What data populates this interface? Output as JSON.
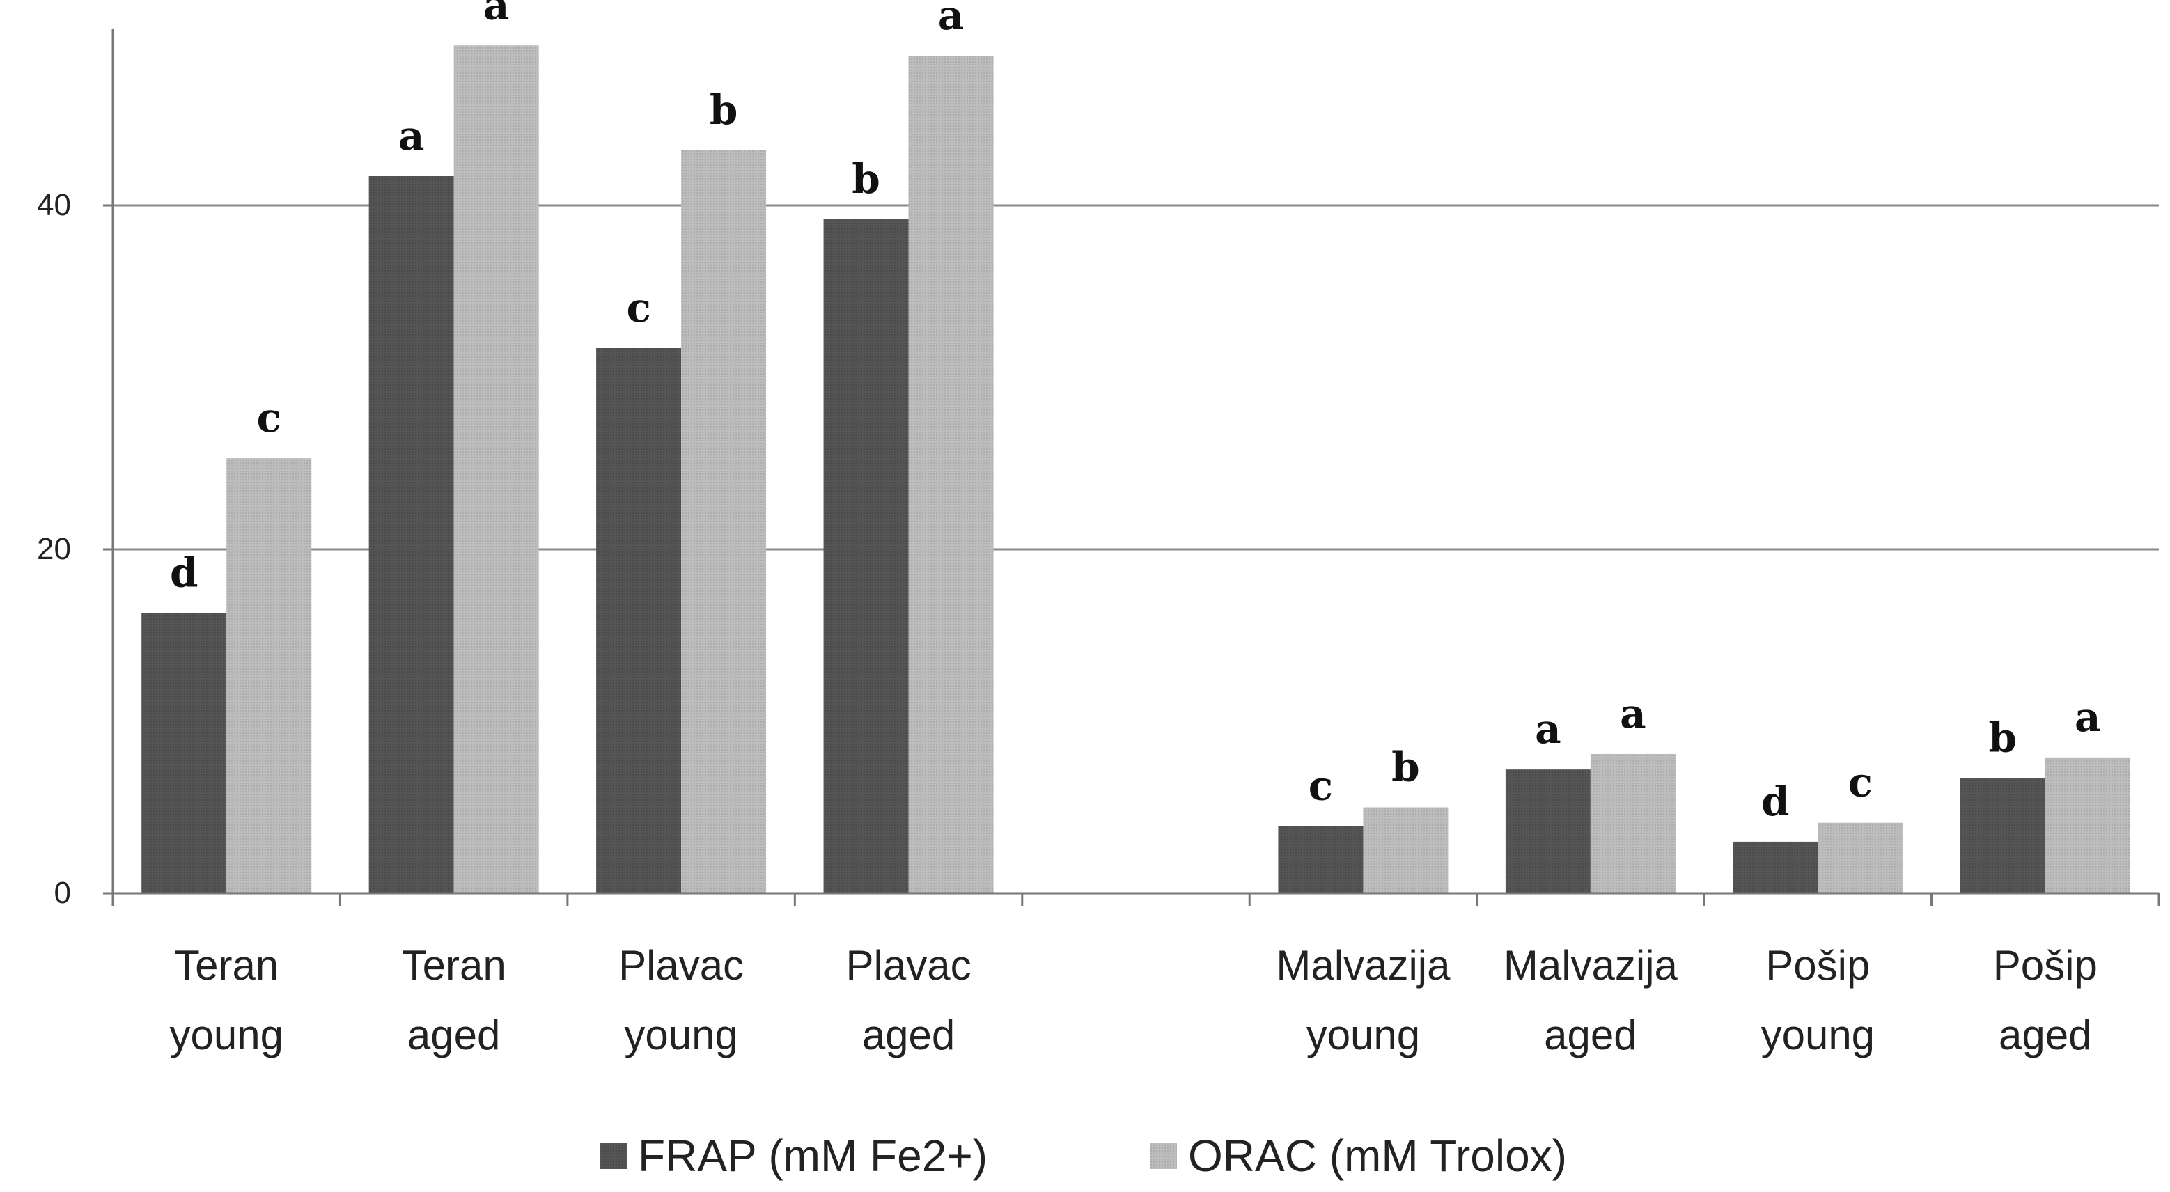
{
  "chart_data": {
    "type": "bar",
    "title": "",
    "xlabel": "",
    "ylabel": "",
    "ylim": [
      0,
      50
    ],
    "yticks": [
      0,
      20,
      40
    ],
    "grid": true,
    "legend_position": "bottom-center",
    "categories": [
      [
        "Teran",
        "young"
      ],
      [
        "Teran",
        "aged"
      ],
      [
        "Plavac",
        "young"
      ],
      [
        "Plavac",
        "aged"
      ],
      [
        "",
        ""
      ],
      [
        "Malvazija",
        "young"
      ],
      [
        "Malvazija",
        "aged"
      ],
      [
        "Pošip",
        "young"
      ],
      [
        "Pošip",
        "aged"
      ]
    ],
    "series": [
      {
        "name": "FRAP (mM Fe2+)",
        "color": "#555555",
        "values": [
          16.3,
          41.7,
          31.7,
          39.2,
          null,
          3.9,
          7.2,
          3.0,
          6.7
        ],
        "letters": [
          "d",
          "a",
          "c",
          "b",
          "",
          "c",
          "a",
          "d",
          "b"
        ]
      },
      {
        "name": "ORAC (mM Trolox)",
        "color": "#b8b8b8",
        "values": [
          25.3,
          49.3,
          43.2,
          48.7,
          null,
          5.0,
          8.1,
          4.1,
          7.9
        ],
        "letters": [
          "c",
          "a",
          "b",
          "a",
          "",
          "b",
          "a",
          "c",
          "a"
        ]
      }
    ]
  }
}
